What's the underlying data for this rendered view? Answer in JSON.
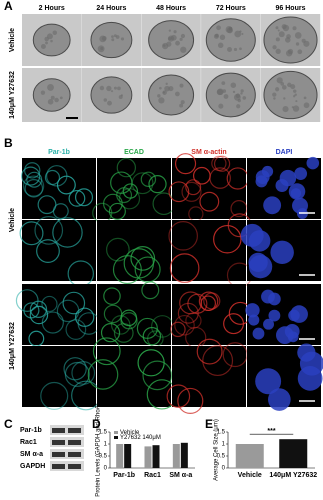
{
  "panels": {
    "A": {
      "label": "A",
      "columns": [
        "2 Hours",
        "24 Hours",
        "48 Hours",
        "72 Hours",
        "96 Hours"
      ],
      "rows": [
        "Vehicle",
        "140μM Y27632"
      ]
    },
    "B": {
      "label": "B",
      "columns": [
        "Par-1b",
        "ECAD",
        "SM α-actin",
        "DAPI"
      ],
      "column_colors": [
        "#2ab0a8",
        "#2aa84a",
        "#d0302a",
        "#2a40c0"
      ],
      "rows": [
        "Vehicle",
        "140μM Y27632"
      ]
    },
    "C": {
      "label": "C",
      "bands": [
        "Par-1b",
        "Rac1",
        "SM α-a",
        "GAPDH"
      ]
    },
    "D": {
      "label": "D",
      "chart": {
        "type": "bar",
        "y_label": "Protein Levels (GAPDH and RhoA)",
        "categories": [
          "Par-1b",
          "Rac1",
          "SM α-a"
        ],
        "series": [
          {
            "name": "Vehicle",
            "color": "#9a9a9a",
            "values": [
              1.0,
              0.9,
              1.0
            ]
          },
          {
            "name": "Y27632 140μM",
            "color": "#111111",
            "values": [
              1.0,
              0.95,
              1.05
            ]
          }
        ],
        "ylim": [
          0,
          1.5
        ],
        "yticks": [
          0,
          0.5,
          1,
          1.5
        ]
      }
    },
    "E": {
      "label": "E",
      "chart": {
        "type": "bar",
        "y_label": "Average Cell Size (μm)",
        "categories": [
          "Vehicle",
          "140μM Y27632"
        ],
        "colors": [
          "#9a9a9a",
          "#111111"
        ],
        "values": [
          1.0,
          1.2
        ],
        "significance": "***",
        "ylim": [
          0,
          1.5
        ],
        "yticks": [
          0,
          0.5,
          1,
          1.5
        ]
      }
    }
  }
}
